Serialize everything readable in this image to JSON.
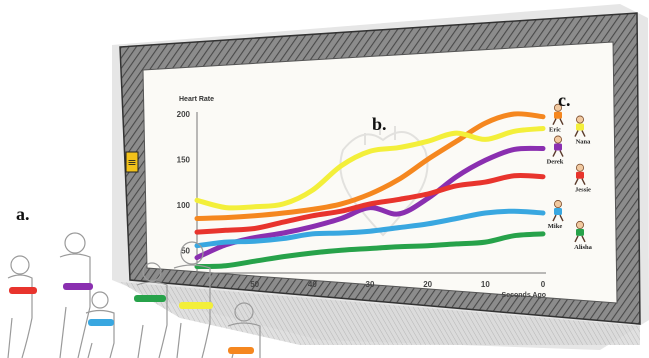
{
  "panel_labels": {
    "a": "a.",
    "b": "b.",
    "c": "c."
  },
  "wall_sign": "≡",
  "chart_data": {
    "type": "line",
    "title": "Heart Rate",
    "xlabel": "Seconds Ago",
    "ylabel": "",
    "x": [
      60,
      55,
      50,
      45,
      40,
      35,
      30,
      25,
      20,
      15,
      10,
      5,
      0
    ],
    "xticks": [
      50,
      40,
      30,
      20,
      10,
      0
    ],
    "yticks": [
      50,
      100,
      150,
      200
    ],
    "xlim": [
      60,
      0
    ],
    "ylim": [
      25,
      200
    ],
    "grid": false,
    "series": [
      {
        "name": "Eric",
        "color": "#f5871f",
        "values": [
          85,
          86,
          88,
          91,
          95,
          101,
          112,
          128,
          150,
          170,
          190,
          200,
          197
        ]
      },
      {
        "name": "Nana",
        "color": "#f3ef3a",
        "values": [
          105,
          97,
          98,
          101,
          116,
          143,
          159,
          163,
          170,
          179,
          172,
          181,
          184
        ]
      },
      {
        "name": "Derek",
        "color": "#8a2fb0",
        "values": [
          42,
          56,
          64,
          69,
          76,
          85,
          97,
          90,
          107,
          131,
          149,
          161,
          162
        ]
      },
      {
        "name": "Jessie",
        "color": "#e8342d",
        "values": [
          70,
          72,
          74,
          81,
          88,
          93,
          101,
          106,
          112,
          121,
          125,
          132,
          131
        ]
      },
      {
        "name": "Mike",
        "color": "#39a7e0",
        "values": [
          55,
          59,
          60,
          63,
          68,
          69,
          71,
          75,
          79,
          85,
          91,
          93,
          91
        ]
      },
      {
        "name": "Alisha",
        "color": "#27a24a",
        "values": [
          32,
          33,
          38,
          43,
          47,
          50,
          52,
          54,
          55,
          57,
          59,
          66,
          68
        ]
      }
    ]
  }
}
